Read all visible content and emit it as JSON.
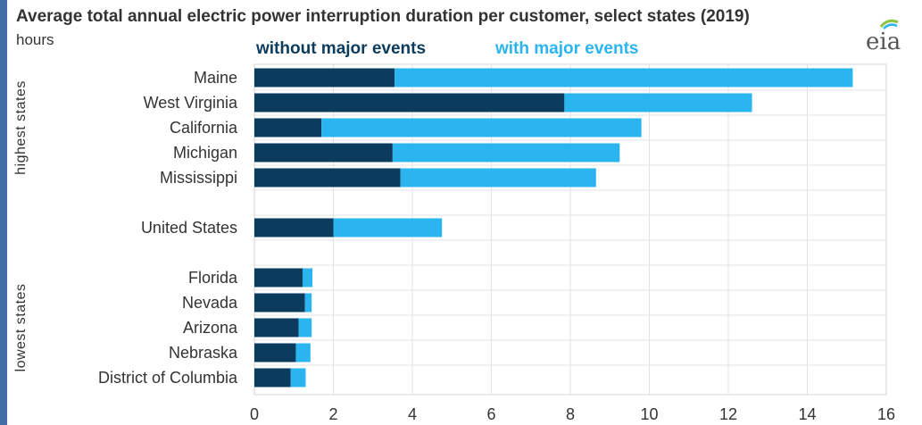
{
  "chart_data": {
    "type": "bar",
    "orientation": "horizontal",
    "stacked": true,
    "title": "Average total annual electric power interruption duration per customer, select states (2019)",
    "unit_label": "hours",
    "series": [
      {
        "name": "without major events",
        "color": "#0b3c5d",
        "values": [
          3.55,
          7.85,
          1.7,
          3.5,
          3.7,
          2.0,
          1.22,
          1.28,
          1.12,
          1.05,
          0.92
        ]
      },
      {
        "name": "with major events",
        "color": "#2bb5f0",
        "values": [
          11.6,
          4.75,
          8.1,
          5.75,
          4.95,
          2.75,
          0.25,
          0.17,
          0.33,
          0.37,
          0.38
        ]
      }
    ],
    "categories": [
      "Maine",
      "West Virginia",
      "California",
      "Michigan",
      "Mississippi",
      "United States",
      "Florida",
      "Nevada",
      "Arizona",
      "Nebraska",
      "District of Columbia"
    ],
    "groups": [
      {
        "label": "highest states",
        "members": [
          "Maine",
          "West Virginia",
          "California",
          "Michigan",
          "Mississippi"
        ]
      },
      {
        "label": "lowest states",
        "members": [
          "Florida",
          "Nevada",
          "Arizona",
          "Nebraska",
          "District of Columbia"
        ]
      }
    ],
    "xlim": [
      0,
      16
    ],
    "xticks": [
      0,
      2,
      4,
      6,
      8,
      10,
      12,
      14,
      16
    ],
    "xtick_labels": [
      "0",
      "2",
      "4",
      "6",
      "8",
      "10",
      "12",
      "14",
      "16"
    ],
    "grid": true,
    "legend_position": "top"
  },
  "source_logo": "eia"
}
